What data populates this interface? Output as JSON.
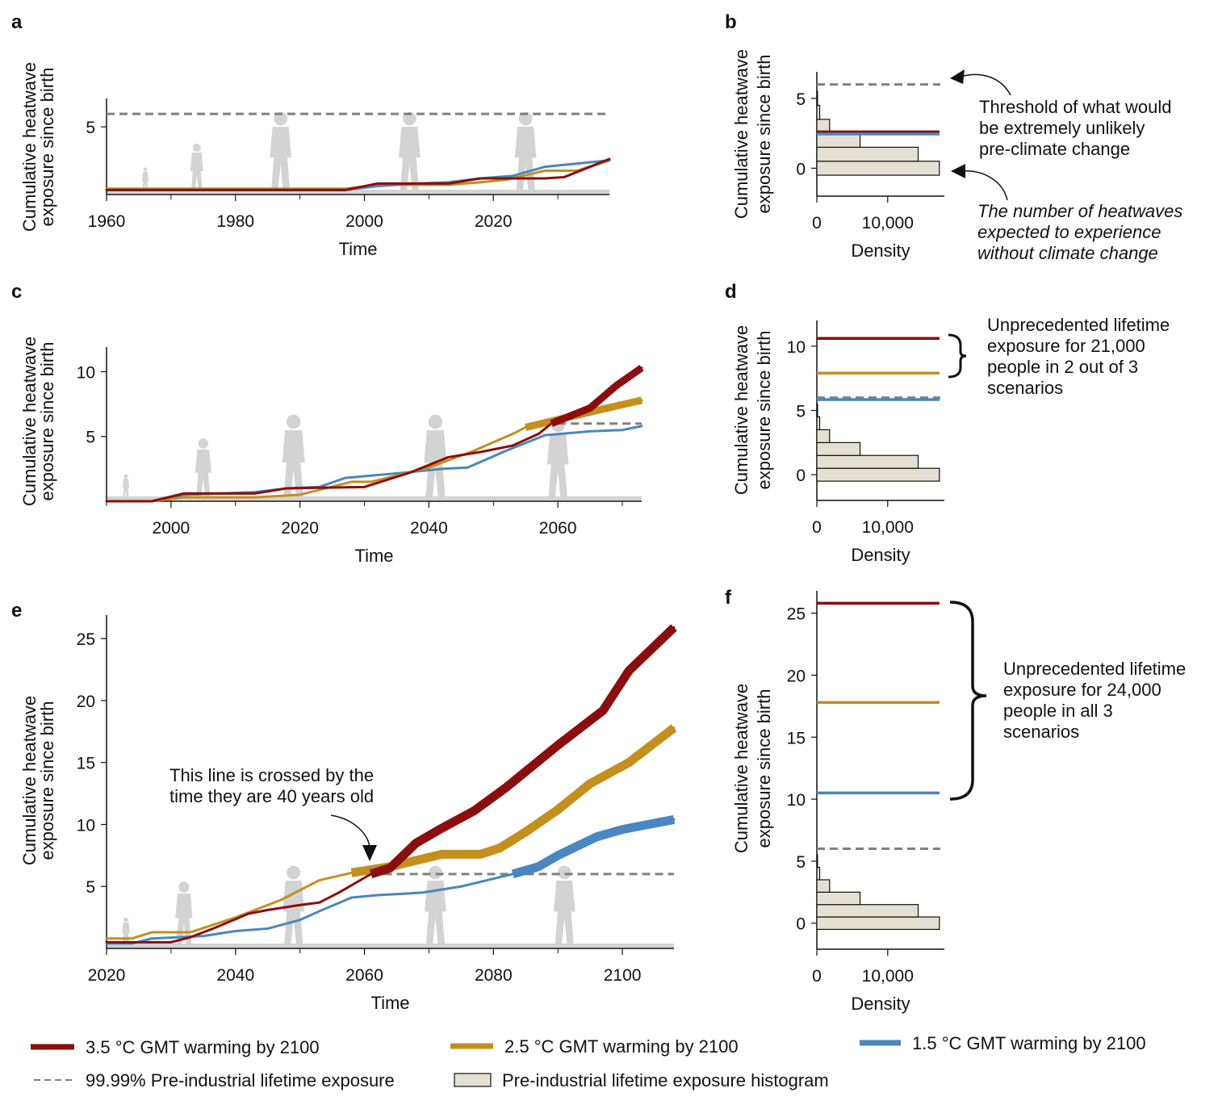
{
  "colors": {
    "red": "#8b0d0d",
    "gold": "#c48f1c",
    "blue": "#4a86bf",
    "threshold": "#808080",
    "hist_fill": "#e5e0d4",
    "silhouette": "#d3d3d3"
  },
  "legend": {
    "red": "3.5 °C GMT warming by 2100",
    "gold": "2.5 °C GMT warming by 2100",
    "blue": "1.5 °C GMT warming by 2100",
    "threshold": "99.99% Pre-industrial lifetime exposure",
    "hist": "Pre-industrial lifetime exposure histogram"
  },
  "annotations": {
    "b_threshold": [
      "Threshold of what would",
      "be extremely unlikely",
      "pre-climate change"
    ],
    "b_expected": [
      "The number of heatwaves",
      "expected to experience",
      "without climate change"
    ],
    "d_brace": [
      "Unprecedented lifetime",
      "exposure for 21,000",
      "people in 2 out of 3",
      "scenarios"
    ],
    "e_cross": [
      "This line is crossed by the",
      "time they are 40 years old"
    ],
    "f_brace": [
      "Unprecedented lifetime",
      "exposure for 24,000",
      "people in all 3",
      "scenarios"
    ]
  },
  "chart_data": [
    {
      "panel": "a",
      "type": "line",
      "xlabel": "Time",
      "ylabel": [
        "Cumulative heatwave",
        "exposure since birth"
      ],
      "xlim": [
        1960,
        2038
      ],
      "ylim": [
        -0.25,
        7.2
      ],
      "xticks": [
        1960,
        1980,
        2000,
        2020
      ],
      "xminor": [
        1970,
        1990,
        2010,
        2030
      ],
      "yticks": [
        5
      ],
      "threshold": 6.0,
      "threshold_range": [
        1960,
        2038
      ],
      "series": [
        {
          "color": "gold",
          "x": [
            1960,
            1997,
            2002,
            2013,
            2018,
            2022,
            2028,
            2033,
            2038
          ],
          "y": [
            0.2,
            0.2,
            0.5,
            0.5,
            0.7,
            0.9,
            1.6,
            1.6,
            2.4
          ]
        },
        {
          "color": "blue",
          "x": [
            1960,
            1997,
            2002,
            2008,
            2013,
            2018,
            2023,
            2028,
            2038
          ],
          "y": [
            0.1,
            0.1,
            0.4,
            0.6,
            0.7,
            1.0,
            1.2,
            1.9,
            2.4
          ]
        },
        {
          "color": "red",
          "x": [
            1960,
            1997,
            2002,
            2013,
            2018,
            2028,
            2031,
            2038
          ],
          "y": [
            0.1,
            0.1,
            0.6,
            0.6,
            1.0,
            1.0,
            1.1,
            2.5
          ]
        }
      ]
    },
    {
      "panel": "b",
      "type": "histogram",
      "xlabel": "Density",
      "ylabel": [
        "Cumulative heatwave",
        "exposure since birth"
      ],
      "xlim": [
        0,
        18000
      ],
      "ylim": [
        -2,
        6.9
      ],
      "xticks": [
        0,
        10000
      ],
      "xtick_labels": [
        "0",
        "10,000"
      ],
      "yticks": [
        0,
        5
      ],
      "bins": [
        0,
        1,
        2,
        3,
        4,
        5
      ],
      "density": [
        17300,
        14300,
        6100,
        1800,
        400,
        100
      ],
      "threshold": 6.0,
      "levels": [
        {
          "color": "red",
          "y": 2.6
        },
        {
          "color": "blue",
          "y": 2.45
        }
      ]
    },
    {
      "panel": "c",
      "type": "line",
      "xlabel": "Time",
      "ylabel": [
        "Cumulative heatwave",
        "exposure since birth"
      ],
      "xlim": [
        1990,
        2073
      ],
      "ylim": [
        0,
        11.9
      ],
      "xticks": [
        2000,
        2020,
        2040,
        2060
      ],
      "xminor": [
        1990,
        2010,
        2030,
        2050,
        2070
      ],
      "yticks": [
        5,
        10
      ],
      "threshold": 6.0,
      "threshold_range": [
        2060,
        2073
      ],
      "series": [
        {
          "color": "blue",
          "thick_from": null,
          "x": [
            1990,
            1997,
            2002,
            2013,
            2018,
            2023,
            2027,
            2036,
            2042,
            2046,
            2052,
            2058,
            2065,
            2070,
            2073
          ],
          "y": [
            0,
            0,
            0.5,
            0.7,
            1.0,
            1.1,
            1.8,
            2.2,
            2.5,
            2.6,
            3.9,
            5.1,
            5.4,
            5.5,
            5.8
          ]
        },
        {
          "color": "gold",
          "thick_from": 2055,
          "x": [
            1990,
            1997,
            2002,
            2013,
            2020,
            2024,
            2028,
            2031,
            2040,
            2047,
            2053,
            2055,
            2060,
            2066,
            2073
          ],
          "y": [
            0,
            0,
            0.3,
            0.3,
            0.5,
            1.0,
            1.5,
            1.5,
            2.6,
            3.9,
            5.2,
            5.7,
            6.3,
            7.0,
            7.8
          ]
        },
        {
          "color": "red",
          "thick_from": 2059,
          "x": [
            1990,
            1997,
            2002,
            2013,
            2018,
            2030,
            2037,
            2043,
            2048,
            2053,
            2057,
            2059,
            2065,
            2069,
            2073
          ],
          "y": [
            0,
            0,
            0.6,
            0.6,
            1.0,
            1.1,
            2.2,
            3.4,
            3.8,
            4.3,
            5.2,
            6.0,
            7.2,
            8.9,
            10.3
          ]
        }
      ]
    },
    {
      "panel": "d",
      "type": "histogram",
      "xlabel": "Density",
      "ylabel": [
        "Cumulative heatwave",
        "exposure since birth"
      ],
      "xlim": [
        0,
        18000
      ],
      "ylim": [
        -2,
        12
      ],
      "xticks": [
        0,
        10000
      ],
      "xtick_labels": [
        "0",
        "10,000"
      ],
      "yticks": [
        0,
        5,
        10
      ],
      "bins": [
        0,
        1,
        2,
        3,
        4,
        5
      ],
      "density": [
        17300,
        14300,
        6100,
        1800,
        400,
        100
      ],
      "threshold": 6.0,
      "levels": [
        {
          "color": "red",
          "y": 10.6
        },
        {
          "color": "gold",
          "y": 7.9
        },
        {
          "color": "blue",
          "y": 5.85
        }
      ]
    },
    {
      "panel": "e",
      "type": "line",
      "xlabel": "Time",
      "ylabel": [
        "Cumulative heatwave",
        "exposure since birth"
      ],
      "xlim": [
        2020,
        2108
      ],
      "ylim": [
        0,
        26.9
      ],
      "xticks": [
        2020,
        2040,
        2060,
        2080,
        2100
      ],
      "xminor": [
        2030,
        2050,
        2070,
        2090
      ],
      "yticks": [
        5,
        10,
        15,
        20,
        25
      ],
      "threshold": 6.0,
      "threshold_range": [
        2061,
        2108
      ],
      "series": [
        {
          "color": "blue",
          "thick_from": 2083,
          "x": [
            2020,
            2024,
            2027,
            2035,
            2040,
            2045,
            2050,
            2053,
            2058,
            2062,
            2069,
            2075,
            2079,
            2083,
            2087,
            2090,
            2096,
            2100,
            2108
          ],
          "y": [
            0.4,
            0.4,
            0.8,
            1.0,
            1.4,
            1.6,
            2.3,
            3.0,
            4.1,
            4.3,
            4.5,
            5.0,
            5.5,
            6.0,
            6.6,
            7.5,
            9.0,
            9.6,
            10.4
          ]
        },
        {
          "color": "gold",
          "thick_from": 2058,
          "x": [
            2020,
            2024,
            2027,
            2033,
            2040,
            2047,
            2053,
            2058,
            2064,
            2072,
            2078,
            2081,
            2085,
            2090,
            2095,
            2101,
            2108
          ],
          "y": [
            0.8,
            0.8,
            1.3,
            1.3,
            2.5,
            3.9,
            5.5,
            6.1,
            6.6,
            7.6,
            7.6,
            8.1,
            9.4,
            11.2,
            13.3,
            15.0,
            17.8
          ]
        },
        {
          "color": "red",
          "thick_from": 2061,
          "x": [
            2020,
            2030,
            2033,
            2037,
            2042,
            2045,
            2050,
            2053,
            2056,
            2061,
            2064,
            2068,
            2072,
            2077,
            2082,
            2090,
            2097,
            2101,
            2108
          ],
          "y": [
            0.5,
            0.5,
            0.9,
            1.7,
            2.8,
            3.1,
            3.5,
            3.7,
            4.5,
            6.0,
            6.5,
            8.5,
            9.7,
            11.1,
            13.0,
            16.4,
            19.2,
            22.4,
            25.9
          ]
        }
      ]
    },
    {
      "panel": "f",
      "type": "histogram",
      "xlabel": "Density",
      "ylabel": [
        "Cumulative heatwave",
        "exposure since birth"
      ],
      "xlim": [
        0,
        18000
      ],
      "ylim": [
        -2.1,
        26.8
      ],
      "xticks": [
        0,
        10000
      ],
      "xtick_labels": [
        "0",
        "10,000"
      ],
      "yticks": [
        0,
        5,
        10,
        15,
        20,
        25
      ],
      "bins": [
        0,
        1,
        2,
        3,
        4,
        5
      ],
      "density": [
        17300,
        14300,
        6100,
        1800,
        400,
        100
      ],
      "threshold": 6.0,
      "levels": [
        {
          "color": "red",
          "y": 25.8
        },
        {
          "color": "gold",
          "y": 17.8
        },
        {
          "color": "blue",
          "y": 10.5
        }
      ]
    }
  ]
}
